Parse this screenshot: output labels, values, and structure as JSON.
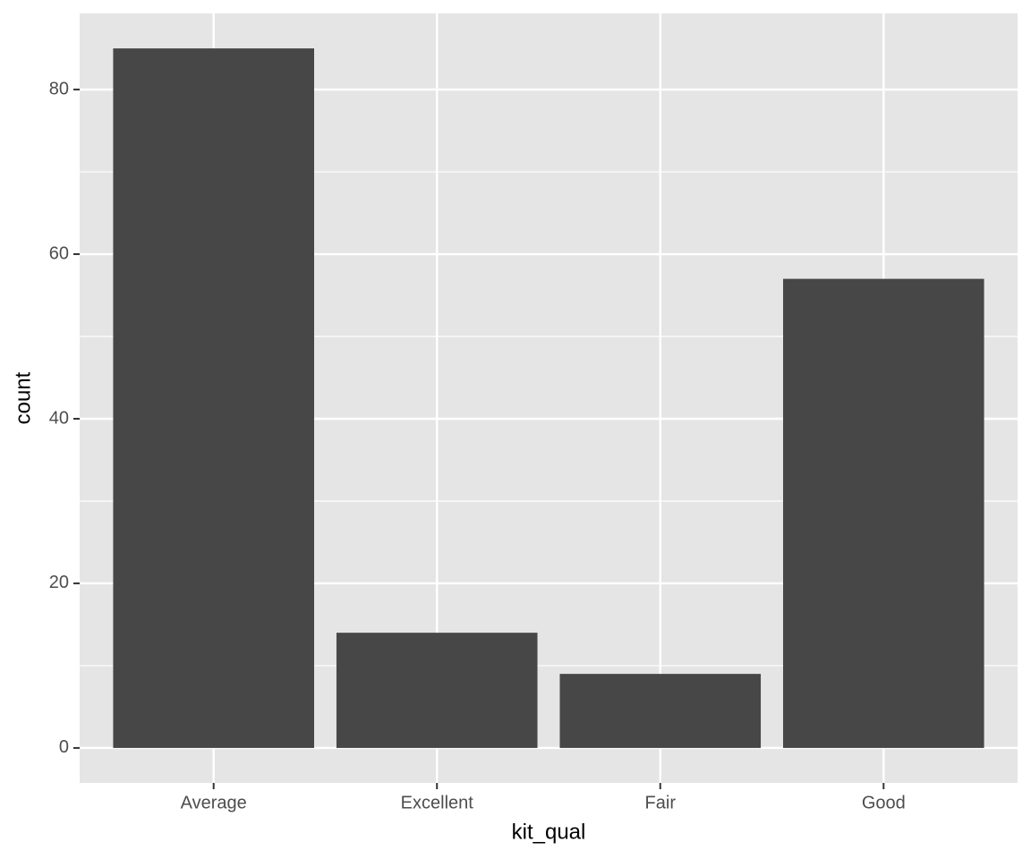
{
  "chart_data": {
    "type": "bar",
    "x_label": "kit_qual",
    "y_label": "count",
    "categories": [
      "Average",
      "Excellent",
      "Fair",
      "Good"
    ],
    "values": [
      85,
      14,
      9,
      57
    ],
    "color": "#474747",
    "ylim": [
      -4.25,
      89.25
    ],
    "yticks": [
      0,
      20,
      40,
      60,
      80
    ],
    "minor_yticks": [
      10,
      30,
      50,
      70
    ],
    "grid": true
  }
}
